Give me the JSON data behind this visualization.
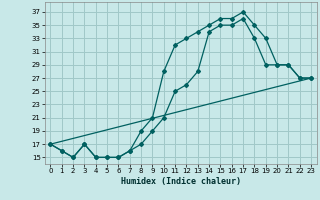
{
  "xlabel": "Humidex (Indice chaleur)",
  "bg_color": "#c8e8e8",
  "grid_color": "#a0c8c8",
  "line_color": "#006060",
  "x_ticks": [
    0,
    1,
    2,
    3,
    4,
    5,
    6,
    7,
    8,
    9,
    10,
    11,
    12,
    13,
    14,
    15,
    16,
    17,
    18,
    19,
    20,
    21,
    22,
    23
  ],
  "y_ticks": [
    15,
    17,
    19,
    21,
    23,
    25,
    27,
    29,
    31,
    33,
    35,
    37
  ],
  "xlim": [
    -0.5,
    23.5
  ],
  "ylim": [
    14,
    38.5
  ],
  "line1_x": [
    0,
    1,
    2,
    3,
    4,
    5,
    6,
    7,
    8,
    9,
    10,
    11,
    12,
    13,
    14,
    15,
    16,
    17,
    18,
    19,
    20,
    21,
    22,
    23
  ],
  "line1_y": [
    17,
    16,
    15,
    17,
    15,
    15,
    15,
    16,
    17,
    19,
    21,
    25,
    26,
    28,
    34,
    35,
    35,
    36,
    33,
    29,
    29,
    29,
    27,
    27
  ],
  "line2_x": [
    0,
    1,
    2,
    3,
    4,
    5,
    6,
    7,
    8,
    9,
    10,
    11,
    12,
    13,
    14,
    15,
    16,
    17,
    18,
    19,
    20,
    21,
    22,
    23
  ],
  "line2_y": [
    17,
    16,
    15,
    17,
    15,
    15,
    15,
    16,
    19,
    21,
    28,
    32,
    33,
    34,
    35,
    36,
    36,
    37,
    35,
    33,
    29,
    29,
    27,
    27
  ],
  "line3_x": [
    0,
    23
  ],
  "line3_y": [
    17,
    27
  ]
}
